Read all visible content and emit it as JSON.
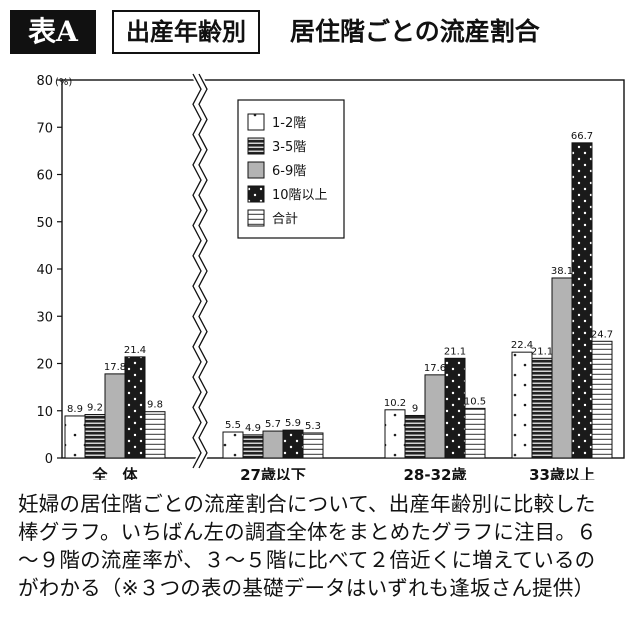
{
  "badge": "表A",
  "title_box": "出産年齢別",
  "title_rest": "居住階ごとの流産割合",
  "caption": [
    "妊婦の居住階ごとの流産割合について、出産年齢別に比較した",
    "棒グラフ。いちばん左の調査全体をまとめたグラフに注目。６",
    "〜９階の流産率が、３〜５階に比べて２倍近くに増えているの",
    "がわかる（※３つの表の基礎データはいずれも逢坂さん提供）"
  ],
  "chart_data": {
    "type": "bar",
    "y_unit": "(%)",
    "ylim": [
      0,
      80
    ],
    "yticks": [
      0,
      10,
      20,
      30,
      40,
      50,
      60,
      70,
      80
    ],
    "axis_break_after_first_group": true,
    "legend_placement": "top-center",
    "categories": [
      "全　体",
      "27歳以下",
      "28-32歳",
      "33歳以上"
    ],
    "series": [
      {
        "name": "1-2階",
        "values": [
          8.9,
          5.5,
          10.2,
          22.4
        ],
        "labels": [
          "8.9",
          "5.5",
          "10.2",
          "22.4"
        ],
        "fill": "white with dots"
      },
      {
        "name": "3-5階",
        "values": [
          9.2,
          4.9,
          9,
          21.1
        ],
        "labels": [
          "9.2",
          "4.9",
          "9",
          "21.1"
        ],
        "fill": "dark horizontal stripes"
      },
      {
        "name": "6-9階",
        "values": [
          17.8,
          5.7,
          17.6,
          38.1
        ],
        "labels": [
          "17.8",
          "5.7",
          "17.6",
          "38.1"
        ],
        "fill": "gray"
      },
      {
        "name": "10階以上",
        "values": [
          21.4,
          5.9,
          21.1,
          66.7
        ],
        "labels": [
          "21.4",
          "5.9",
          "21.1",
          "66.7"
        ],
        "fill": "black with dots"
      },
      {
        "name": "合計",
        "values": [
          9.8,
          5.3,
          10.5,
          24.7
        ],
        "labels": [
          "9.8",
          "5.3",
          "10.5",
          "24.7"
        ],
        "fill": "white horizontal stripes"
      }
    ]
  }
}
